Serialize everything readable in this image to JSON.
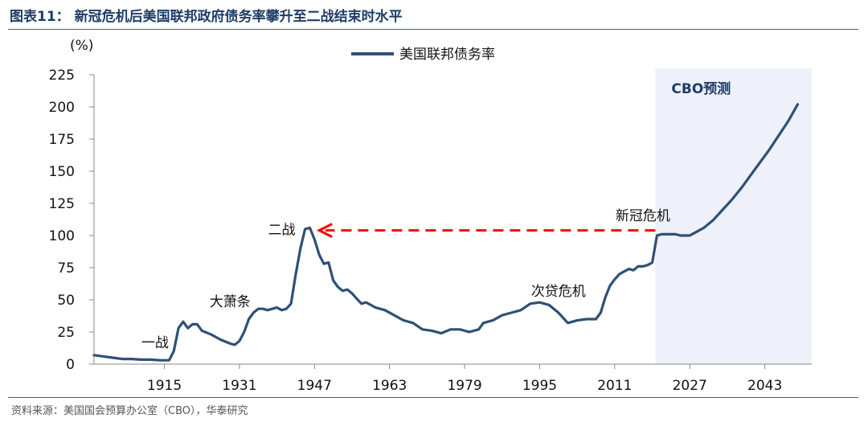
{
  "figure": {
    "title": "图表11：  新冠危机后美国联邦政府债务率攀升至二战结束时水平",
    "source": "资料来源：美国国会预算办公室（CBO），华泰研究"
  },
  "chart_data": {
    "type": "line",
    "title": "",
    "ylabel": "(%)",
    "xlabel": "",
    "ylim": [
      0,
      225
    ],
    "xlim": [
      1900,
      2053
    ],
    "yticks": [
      0,
      25,
      50,
      75,
      100,
      125,
      150,
      175,
      200,
      225
    ],
    "xticks": [
      1915,
      1931,
      1947,
      1963,
      1979,
      1995,
      2011,
      2027,
      2043
    ],
    "legend": {
      "position": "top-center"
    },
    "colors": {
      "line": "#2f5077",
      "forecast_band": "#eef0fa",
      "arrow": "#ff0000",
      "axis": "#8a8a8a"
    },
    "series": [
      {
        "name": "美国联邦债务率",
        "points": [
          [
            1900,
            7
          ],
          [
            1902,
            6
          ],
          [
            1904,
            5
          ],
          [
            1906,
            4
          ],
          [
            1908,
            4
          ],
          [
            1910,
            3.5
          ],
          [
            1912,
            3.5
          ],
          [
            1914,
            3
          ],
          [
            1916,
            3
          ],
          [
            1917,
            10
          ],
          [
            1918,
            28
          ],
          [
            1919,
            33
          ],
          [
            1920,
            28
          ],
          [
            1921,
            31
          ],
          [
            1922,
            31
          ],
          [
            1923,
            26
          ],
          [
            1925,
            23
          ],
          [
            1927,
            19
          ],
          [
            1929,
            16
          ],
          [
            1930,
            15
          ],
          [
            1931,
            18
          ],
          [
            1932,
            25
          ],
          [
            1933,
            35
          ],
          [
            1934,
            40
          ],
          [
            1935,
            43
          ],
          [
            1936,
            43
          ],
          [
            1937,
            42
          ],
          [
            1938,
            43
          ],
          [
            1939,
            44
          ],
          [
            1940,
            42
          ],
          [
            1941,
            43
          ],
          [
            1942,
            47
          ],
          [
            1943,
            70
          ],
          [
            1944,
            90
          ],
          [
            1945,
            105
          ],
          [
            1946,
            106
          ],
          [
            1947,
            97
          ],
          [
            1948,
            85
          ],
          [
            1949,
            78
          ],
          [
            1950,
            79
          ],
          [
            1951,
            65
          ],
          [
            1952,
            60
          ],
          [
            1953,
            57
          ],
          [
            1954,
            58
          ],
          [
            1955,
            55
          ],
          [
            1956,
            51
          ],
          [
            1957,
            47
          ],
          [
            1958,
            48
          ],
          [
            1959,
            46
          ],
          [
            1960,
            44
          ],
          [
            1962,
            42
          ],
          [
            1964,
            38
          ],
          [
            1966,
            34
          ],
          [
            1968,
            32
          ],
          [
            1970,
            27
          ],
          [
            1972,
            26
          ],
          [
            1974,
            24
          ],
          [
            1976,
            27
          ],
          [
            1978,
            27
          ],
          [
            1980,
            25
          ],
          [
            1982,
            27
          ],
          [
            1983,
            32
          ],
          [
            1985,
            34
          ],
          [
            1987,
            38
          ],
          [
            1989,
            40
          ],
          [
            1991,
            42
          ],
          [
            1993,
            47
          ],
          [
            1995,
            48
          ],
          [
            1997,
            46
          ],
          [
            1999,
            40
          ],
          [
            2001,
            32
          ],
          [
            2003,
            34
          ],
          [
            2005,
            35
          ],
          [
            2007,
            35
          ],
          [
            2008,
            40
          ],
          [
            2009,
            52
          ],
          [
            2010,
            61
          ],
          [
            2011,
            66
          ],
          [
            2012,
            70
          ],
          [
            2013,
            72
          ],
          [
            2014,
            74
          ],
          [
            2015,
            73
          ],
          [
            2016,
            76
          ],
          [
            2017,
            76
          ],
          [
            2018,
            77
          ],
          [
            2019,
            79
          ],
          [
            2020,
            100
          ],
          [
            2021,
            101
          ],
          [
            2022,
            101
          ],
          [
            2023,
            101
          ],
          [
            2024,
            101
          ],
          [
            2025,
            100
          ],
          [
            2026,
            100
          ],
          [
            2027,
            100
          ],
          [
            2028,
            102
          ],
          [
            2030,
            106
          ],
          [
            2032,
            112
          ],
          [
            2034,
            120
          ],
          [
            2036,
            128
          ],
          [
            2038,
            137
          ],
          [
            2040,
            147
          ],
          [
            2042,
            157
          ],
          [
            2044,
            167
          ],
          [
            2046,
            178
          ],
          [
            2048,
            189
          ],
          [
            2050,
            202
          ]
        ]
      }
    ],
    "forecast_region": {
      "label": "CBO预测",
      "start": 2020,
      "end": 2053
    },
    "arrow": {
      "from_year": 2020,
      "to_year": 1948,
      "value": 104
    },
    "annotations": [
      {
        "text": "一战",
        "x": 1913,
        "y": 13
      },
      {
        "text": "大萧条",
        "x": 1929,
        "y": 45
      },
      {
        "text": "二战",
        "x": 1940,
        "y": 101
      },
      {
        "text": "次贷危机",
        "x": 1999,
        "y": 53
      },
      {
        "text": "新冠危机",
        "x": 2017,
        "y": 112
      }
    ]
  }
}
